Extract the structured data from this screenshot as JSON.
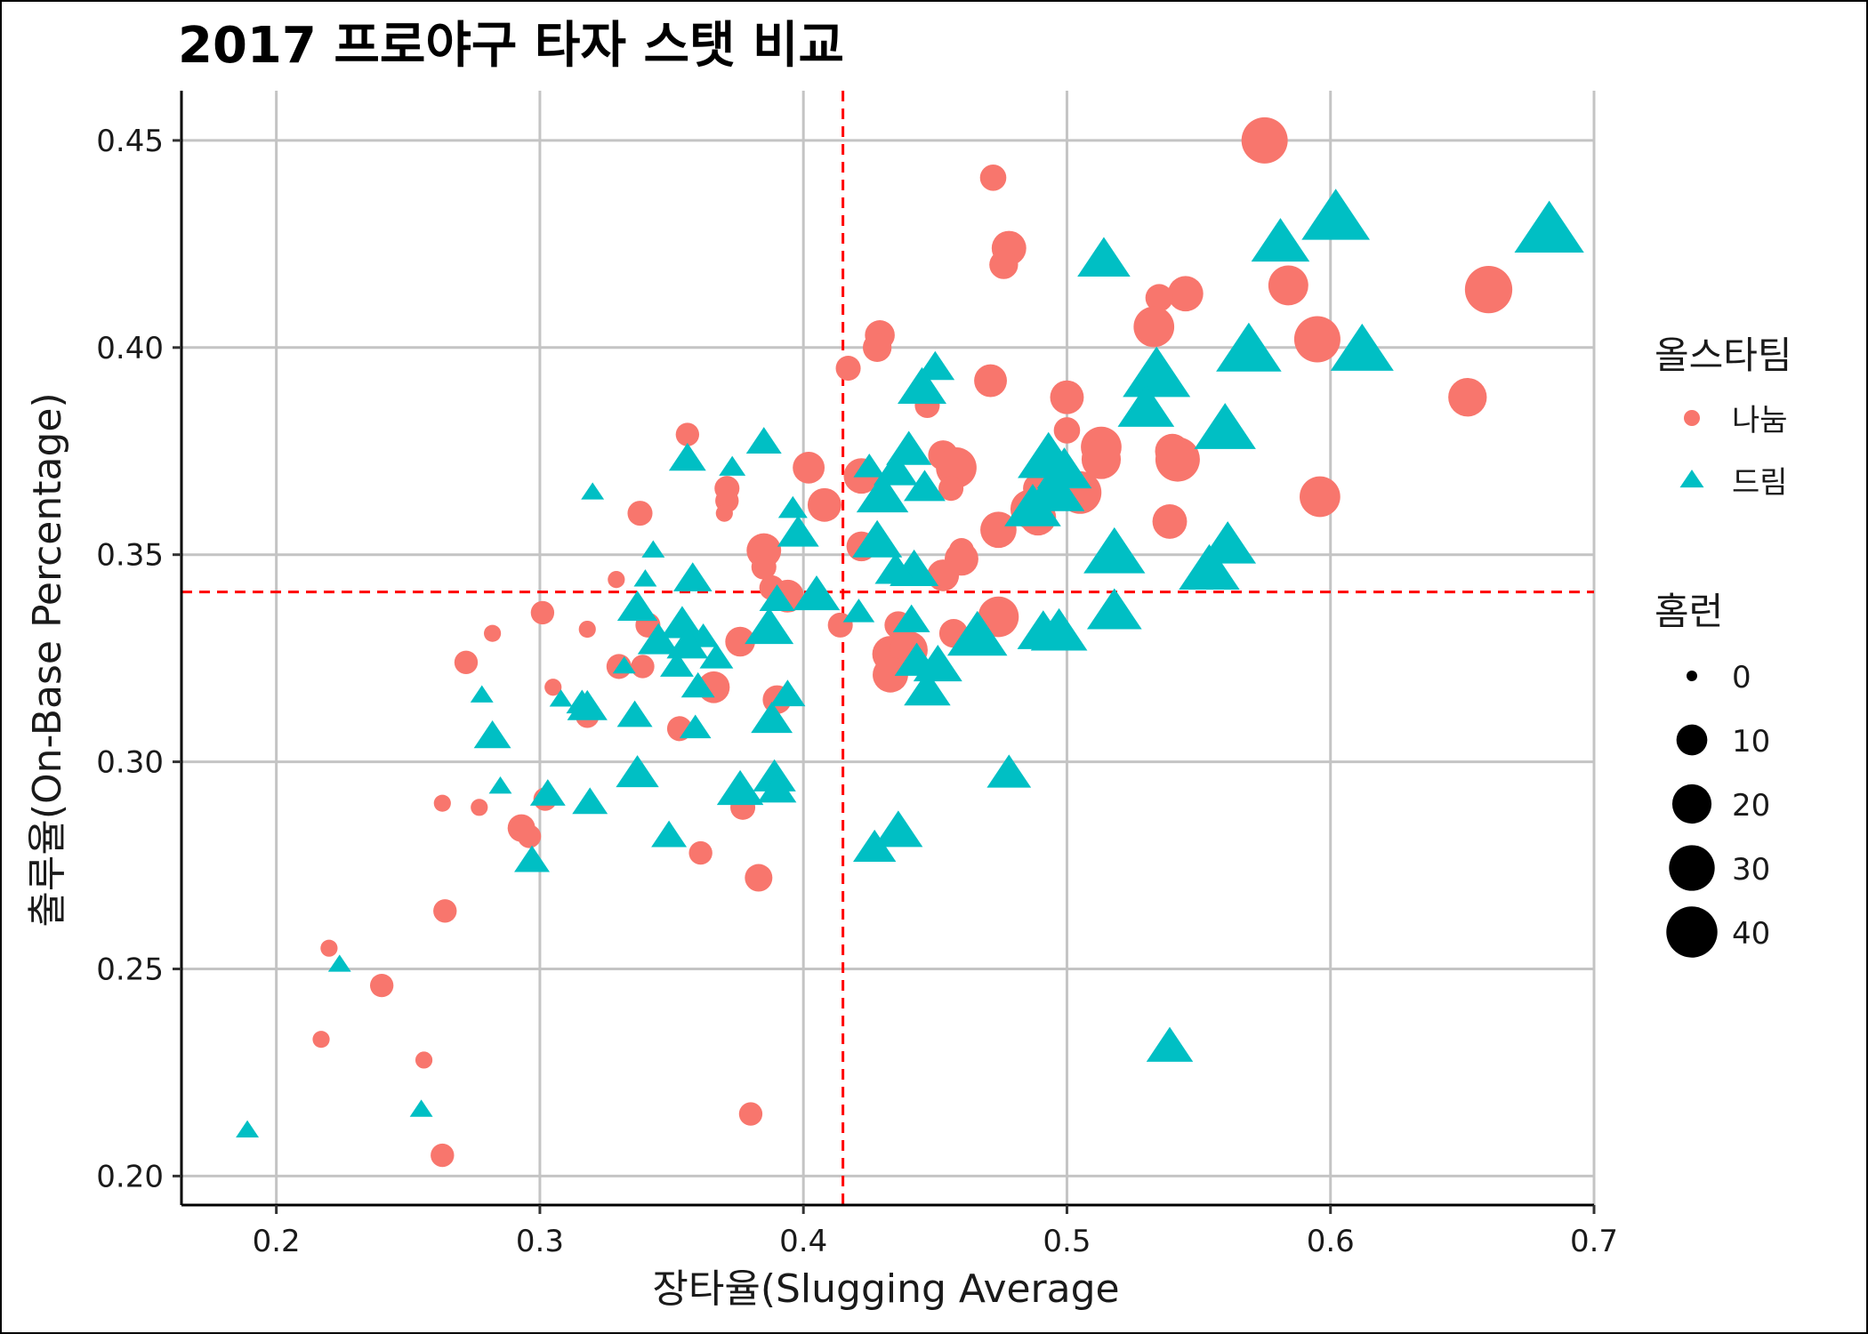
{
  "chart_data": {
    "type": "scatter",
    "title": "2017 프로야구 타자 스탯 비교",
    "xlabel": "장타율(Slugging Average",
    "ylabel": "출루율(On-Base Percentage)",
    "xlim": [
      0.164,
      0.7
    ],
    "ylim": [
      0.193,
      0.462
    ],
    "xticks": [
      0.2,
      0.3,
      0.4,
      0.5,
      0.6,
      0.7
    ],
    "xtick_labels": [
      "0.2",
      "0.3",
      "0.4",
      "0.5",
      "0.6",
      "0.7"
    ],
    "yticks": [
      0.2,
      0.25,
      0.3,
      0.35,
      0.4,
      0.45
    ],
    "ytick_labels": [
      "0.20",
      "0.25",
      "0.30",
      "0.35",
      "0.40",
      "0.45"
    ],
    "grid": true,
    "reference_lines": {
      "x": 0.415,
      "y": 0.341,
      "color": "#ff0000",
      "style": "dashed"
    },
    "colors": {
      "나눔": "#f8766d",
      "드림": "#00bfc4"
    },
    "color_legend": {
      "title": "올스타팀",
      "entries": [
        "나눔",
        "드림"
      ]
    },
    "size_legend": {
      "title": "홈런",
      "values": [
        0,
        10,
        20,
        30,
        40
      ],
      "labels": [
        "0",
        "10",
        "20",
        "30",
        "40"
      ]
    },
    "legend_position": "right",
    "series": [
      {
        "name": "나눔",
        "marker": "circle",
        "points": [
          [
            0.575,
            0.45,
            31
          ],
          [
            0.472,
            0.441,
            6
          ],
          [
            0.478,
            0.424,
            14
          ],
          [
            0.476,
            0.42,
            8
          ],
          [
            0.66,
            0.414,
            33
          ],
          [
            0.584,
            0.415,
            21
          ],
          [
            0.545,
            0.413,
            15
          ],
          [
            0.535,
            0.412,
            7
          ],
          [
            0.533,
            0.405,
            22
          ],
          [
            0.595,
            0.402,
            31
          ],
          [
            0.429,
            0.403,
            9
          ],
          [
            0.428,
            0.4,
            8
          ],
          [
            0.417,
            0.395,
            5
          ],
          [
            0.471,
            0.392,
            12
          ],
          [
            0.652,
            0.388,
            19
          ],
          [
            0.5,
            0.388,
            13
          ],
          [
            0.447,
            0.386,
            5
          ],
          [
            0.5,
            0.38,
            6
          ],
          [
            0.356,
            0.379,
            4
          ],
          [
            0.513,
            0.376,
            22
          ],
          [
            0.54,
            0.375,
            14
          ],
          [
            0.453,
            0.374,
            9
          ],
          [
            0.513,
            0.373,
            20
          ],
          [
            0.542,
            0.373,
            28
          ],
          [
            0.458,
            0.371,
            22
          ],
          [
            0.402,
            0.371,
            11
          ],
          [
            0.422,
            0.369,
            15
          ],
          [
            0.371,
            0.366,
            5
          ],
          [
            0.456,
            0.366,
            5
          ],
          [
            0.489,
            0.366,
            9
          ],
          [
            0.505,
            0.365,
            25
          ],
          [
            0.596,
            0.364,
            22
          ],
          [
            0.408,
            0.362,
            13
          ],
          [
            0.371,
            0.363,
            4
          ],
          [
            0.486,
            0.361,
            20
          ],
          [
            0.37,
            0.36,
            1
          ],
          [
            0.338,
            0.36,
            5
          ],
          [
            0.489,
            0.359,
            16
          ],
          [
            0.539,
            0.358,
            14
          ],
          [
            0.474,
            0.356,
            16
          ],
          [
            0.422,
            0.352,
            9
          ],
          [
            0.46,
            0.351,
            5
          ],
          [
            0.385,
            0.351,
            14
          ],
          [
            0.46,
            0.349,
            13
          ],
          [
            0.385,
            0.347,
            5
          ],
          [
            0.453,
            0.345,
            11
          ],
          [
            0.329,
            0.344,
            1
          ],
          [
            0.388,
            0.342,
            5
          ],
          [
            0.394,
            0.34,
            12
          ],
          [
            0.474,
            0.335,
            22
          ],
          [
            0.301,
            0.336,
            4
          ],
          [
            0.414,
            0.333,
            5
          ],
          [
            0.436,
            0.333,
            7
          ],
          [
            0.341,
            0.333,
            5
          ],
          [
            0.318,
            0.332,
            1
          ],
          [
            0.457,
            0.331,
            8
          ],
          [
            0.282,
            0.331,
            1
          ],
          [
            0.376,
            0.329,
            9
          ],
          [
            0.433,
            0.326,
            16
          ],
          [
            0.44,
            0.327,
            18
          ],
          [
            0.272,
            0.324,
            4
          ],
          [
            0.33,
            0.323,
            5
          ],
          [
            0.339,
            0.323,
            4
          ],
          [
            0.433,
            0.321,
            15
          ],
          [
            0.366,
            0.318,
            11
          ],
          [
            0.305,
            0.318,
            1
          ],
          [
            0.318,
            0.311,
            4
          ],
          [
            0.39,
            0.315,
            8
          ],
          [
            0.353,
            0.308,
            5
          ],
          [
            0.263,
            0.29,
            1
          ],
          [
            0.293,
            0.284,
            7
          ],
          [
            0.277,
            0.289,
            1
          ],
          [
            0.302,
            0.291,
            4
          ],
          [
            0.296,
            0.282,
            4
          ],
          [
            0.361,
            0.278,
            4
          ],
          [
            0.377,
            0.289,
            5
          ],
          [
            0.383,
            0.272,
            7
          ],
          [
            0.264,
            0.264,
            4
          ],
          [
            0.22,
            0.255,
            1
          ],
          [
            0.24,
            0.246,
            4
          ],
          [
            0.217,
            0.233,
            1
          ],
          [
            0.256,
            0.228,
            1
          ],
          [
            0.38,
            0.215,
            4
          ],
          [
            0.263,
            0.205,
            4
          ]
        ]
      },
      {
        "name": "드림",
        "marker": "triangle",
        "points": [
          [
            0.683,
            0.428,
            41
          ],
          [
            0.602,
            0.431,
            39
          ],
          [
            0.581,
            0.425,
            26
          ],
          [
            0.514,
            0.421,
            20
          ],
          [
            0.569,
            0.399,
            35
          ],
          [
            0.612,
            0.399,
            32
          ],
          [
            0.534,
            0.393,
            38
          ],
          [
            0.45,
            0.395,
            8
          ],
          [
            0.445,
            0.39,
            16
          ],
          [
            0.53,
            0.385,
            24
          ],
          [
            0.56,
            0.38,
            30
          ],
          [
            0.44,
            0.375,
            13
          ],
          [
            0.493,
            0.373,
            30
          ],
          [
            0.425,
            0.371,
            4
          ],
          [
            0.435,
            0.37,
            12
          ],
          [
            0.373,
            0.371,
            2
          ],
          [
            0.356,
            0.373,
            7
          ],
          [
            0.385,
            0.377,
            6
          ],
          [
            0.499,
            0.37,
            22
          ],
          [
            0.487,
            0.361,
            24
          ],
          [
            0.495,
            0.365,
            30
          ],
          [
            0.43,
            0.364,
            19
          ],
          [
            0.446,
            0.366,
            10
          ],
          [
            0.32,
            0.365,
            1
          ],
          [
            0.396,
            0.361,
            3
          ],
          [
            0.398,
            0.355,
            10
          ],
          [
            0.428,
            0.353,
            17
          ],
          [
            0.561,
            0.352,
            24
          ],
          [
            0.518,
            0.35,
            30
          ],
          [
            0.343,
            0.351,
            1
          ],
          [
            0.554,
            0.346,
            29
          ],
          [
            0.442,
            0.346,
            16
          ],
          [
            0.435,
            0.346,
            10
          ],
          [
            0.358,
            0.344,
            8
          ],
          [
            0.34,
            0.344,
            1
          ],
          [
            0.405,
            0.34,
            14
          ],
          [
            0.39,
            0.339,
            6
          ],
          [
            0.421,
            0.336,
            4
          ],
          [
            0.518,
            0.336,
            22
          ],
          [
            0.337,
            0.337,
            9
          ],
          [
            0.441,
            0.334,
            7
          ],
          [
            0.387,
            0.332,
            16
          ],
          [
            0.354,
            0.333,
            11
          ],
          [
            0.362,
            0.33,
            4
          ],
          [
            0.466,
            0.33,
            28
          ],
          [
            0.491,
            0.331,
            19
          ],
          [
            0.497,
            0.331,
            24
          ],
          [
            0.345,
            0.329,
            10
          ],
          [
            0.356,
            0.328,
            10
          ],
          [
            0.367,
            0.325,
            5
          ],
          [
            0.332,
            0.323,
            1
          ],
          [
            0.352,
            0.323,
            5
          ],
          [
            0.443,
            0.324,
            12
          ],
          [
            0.451,
            0.323,
            16
          ],
          [
            0.36,
            0.318,
            5
          ],
          [
            0.447,
            0.317,
            14
          ],
          [
            0.278,
            0.316,
            1
          ],
          [
            0.308,
            0.315,
            1
          ],
          [
            0.394,
            0.316,
            6
          ],
          [
            0.316,
            0.314,
            4
          ],
          [
            0.318,
            0.313,
            9
          ],
          [
            0.336,
            0.311,
            6
          ],
          [
            0.388,
            0.31,
            10
          ],
          [
            0.282,
            0.306,
            7
          ],
          [
            0.359,
            0.308,
            4
          ],
          [
            0.478,
            0.297,
            12
          ],
          [
            0.337,
            0.297,
            11
          ],
          [
            0.389,
            0.296,
            11
          ],
          [
            0.376,
            0.293,
            14
          ],
          [
            0.39,
            0.293,
            8
          ],
          [
            0.285,
            0.294,
            1
          ],
          [
            0.303,
            0.292,
            6
          ],
          [
            0.319,
            0.29,
            6
          ],
          [
            0.427,
            0.279,
            11
          ],
          [
            0.436,
            0.283,
            16
          ],
          [
            0.349,
            0.282,
            6
          ],
          [
            0.297,
            0.276,
            6
          ],
          [
            0.224,
            0.251,
            1
          ],
          [
            0.539,
            0.231,
            14
          ],
          [
            0.255,
            0.216,
            1
          ],
          [
            0.189,
            0.211,
            1
          ]
        ]
      }
    ]
  }
}
